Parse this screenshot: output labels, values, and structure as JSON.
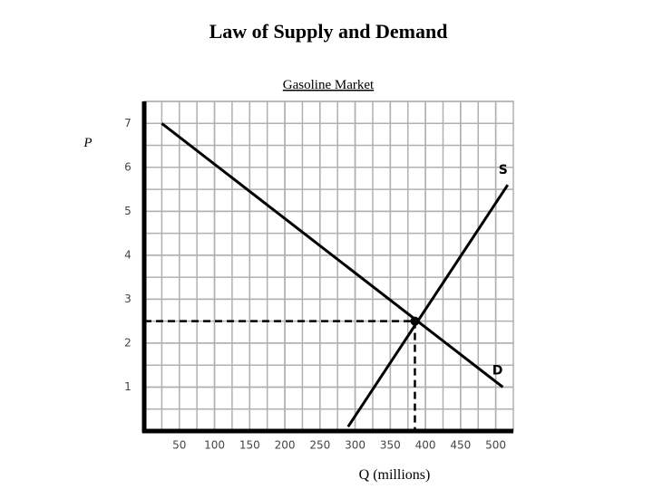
{
  "chart_data": {
    "type": "line",
    "title": "Law of Supply and Demand",
    "subtitle": "Gasoline Market",
    "x_label": "Q (millions)",
    "y_label": "P",
    "xlim": [
      0,
      525
    ],
    "ylim": [
      0,
      7.5
    ],
    "xticks": [
      50,
      100,
      150,
      200,
      250,
      300,
      350,
      400,
      450,
      500
    ],
    "yticks": [
      1,
      2,
      3,
      4,
      5,
      6,
      7
    ],
    "grid": true,
    "series": [
      {
        "name": "D",
        "color": "#000000",
        "x": [
          25,
          510
        ],
        "values": [
          7,
          1
        ]
      },
      {
        "name": "S",
        "color": "#000000",
        "x": [
          290,
          517
        ],
        "values": [
          0.1,
          5.6
        ]
      }
    ],
    "equilibrium": {
      "x": 385,
      "y": 2.5
    }
  }
}
